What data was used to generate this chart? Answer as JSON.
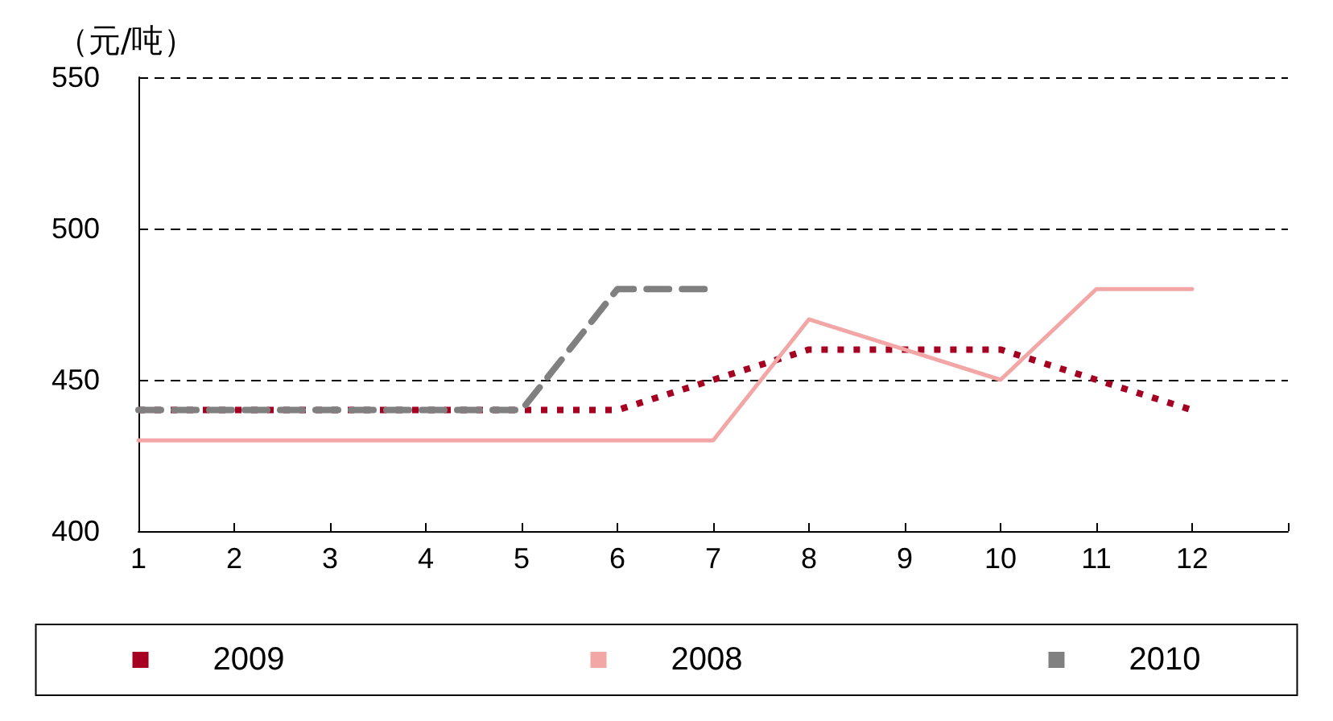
{
  "chart_data": {
    "type": "line",
    "ylabel": "（元/吨）",
    "x": [
      1,
      2,
      3,
      4,
      5,
      6,
      7,
      8,
      9,
      10,
      11,
      12
    ],
    "xlim": [
      1,
      13
    ],
    "xticks": [
      1,
      2,
      3,
      4,
      5,
      6,
      7,
      8,
      9,
      10,
      11,
      12,
      {
        "value": 13,
        "label": null
      }
    ],
    "ylim": [
      400,
      550
    ],
    "yticks": [
      400,
      450,
      500,
      550
    ],
    "grid": "y",
    "legend": "bottom",
    "marker": "none",
    "series": [
      {
        "name": "2009",
        "color": "#a50021",
        "line_style": "dotted",
        "values": [
          440,
          440,
          440,
          440,
          440,
          440,
          450,
          460,
          460,
          460,
          450,
          440
        ]
      },
      {
        "name": "2008",
        "color": "#f2a7a6",
        "line_style": "solid",
        "values": [
          430,
          430,
          430,
          430,
          430,
          430,
          430,
          470,
          460,
          450,
          480,
          480
        ]
      },
      {
        "name": "2010",
        "color": "#808080",
        "line_style": "dashed",
        "values": [
          440,
          440,
          440,
          440,
          440,
          480,
          480,
          null,
          null,
          null,
          null,
          null
        ]
      }
    ]
  }
}
